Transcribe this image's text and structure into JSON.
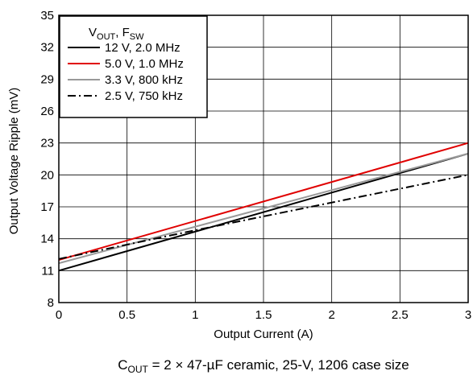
{
  "chart_data": {
    "type": "line",
    "xlabel": "Output Current (A)",
    "ylabel": "Output Voltage Ripple (mV)",
    "xlim": [
      0,
      3
    ],
    "ylim": [
      8,
      35
    ],
    "xticks": [
      0,
      0.5,
      1,
      1.5,
      2,
      2.5,
      3
    ],
    "xtick_labels": [
      "0",
      "0.5",
      "1",
      "1.5",
      "2",
      "2.5",
      "3"
    ],
    "yticks": [
      8,
      11,
      14,
      17,
      20,
      23,
      26,
      29,
      32,
      35
    ],
    "ytick_labels": [
      "8",
      "11",
      "14",
      "17",
      "20",
      "23",
      "26",
      "29",
      "32",
      "35"
    ],
    "grid": true,
    "legend_position": "top-left",
    "legend_title": {
      "v": "V",
      "v_sub": "OUT",
      "sep": ", F",
      "f_sub": "SW"
    },
    "series": [
      {
        "name": "12 V, 2.0 MHz",
        "color": "#000000",
        "dash": "solid",
        "x": [
          0,
          3
        ],
        "y": [
          11,
          22
        ]
      },
      {
        "name": "5.0 V, 1.0 MHz",
        "color": "#e00000",
        "dash": "solid",
        "x": [
          0,
          3
        ],
        "y": [
          12,
          23
        ]
      },
      {
        "name": "3.3 V, 800 kHz",
        "color": "#999999",
        "dash": "solid",
        "x": [
          0,
          3
        ],
        "y": [
          11.7,
          22
        ]
      },
      {
        "name": "2.5 V, 750 kHz",
        "color": "#000000",
        "dash": "dash-dot",
        "x": [
          0,
          1,
          2,
          3
        ],
        "y": [
          12.1,
          14.8,
          17.4,
          20
        ]
      }
    ],
    "caption": {
      "pre": "C",
      "sub": "OUT",
      "post": " = 2 × 47-µF ceramic, 25-V, 1206 case size"
    }
  }
}
